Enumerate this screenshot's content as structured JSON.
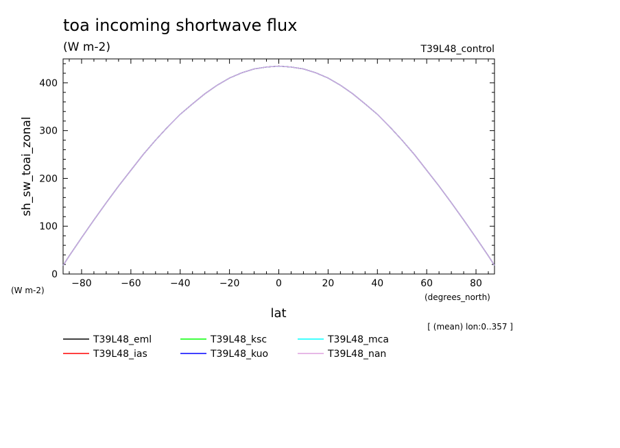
{
  "chart_data": {
    "type": "line",
    "title": "toa incoming shortwave flux",
    "subtitle": "(W m-2)",
    "run_label": "T39L48_control",
    "ylabel": "sh_sw_toai_zonal",
    "yunits": "(W m-2)",
    "xlabel": "lat",
    "xunits": "(degrees_north)",
    "footnote": "[ (mean) lon:0..357 ]",
    "xlim": [
      -87.5,
      87.5
    ],
    "ylim": [
      0,
      450
    ],
    "xticks": [
      -80,
      -60,
      -40,
      -20,
      0,
      20,
      40,
      60,
      80
    ],
    "yticks": [
      0,
      100,
      200,
      300,
      400
    ],
    "x": [
      -87.5,
      -85,
      -80,
      -75,
      -70,
      -65,
      -60,
      -55,
      -50,
      -45,
      -40,
      -35,
      -30,
      -25,
      -20,
      -15,
      -10,
      -5,
      0,
      5,
      10,
      15,
      20,
      25,
      30,
      35,
      40,
      45,
      50,
      55,
      60,
      65,
      70,
      75,
      80,
      85,
      87.5
    ],
    "series": [
      {
        "name": "T39L48_eml",
        "color": "#000000",
        "values": [
          18,
          38,
          76,
          113,
          149,
          184,
          217,
          250,
          280,
          308,
          334,
          356,
          377,
          395,
          410,
          421,
          429,
          433,
          435,
          433,
          429,
          421,
          410,
          395,
          377,
          356,
          334,
          308,
          280,
          250,
          217,
          184,
          149,
          113,
          76,
          38,
          18
        ]
      },
      {
        "name": "T39L48_ias",
        "color": "#ff0000",
        "values": [
          18,
          38,
          76,
          113,
          149,
          184,
          217,
          250,
          280,
          308,
          334,
          356,
          377,
          395,
          410,
          421,
          429,
          433,
          435,
          433,
          429,
          421,
          410,
          395,
          377,
          356,
          334,
          308,
          280,
          250,
          217,
          184,
          149,
          113,
          76,
          38,
          18
        ]
      },
      {
        "name": "T39L48_ksc",
        "color": "#00ff00",
        "values": [
          18,
          38,
          76,
          113,
          149,
          184,
          217,
          250,
          280,
          308,
          334,
          356,
          377,
          395,
          410,
          421,
          429,
          433,
          435,
          433,
          429,
          421,
          410,
          395,
          377,
          356,
          334,
          308,
          280,
          250,
          217,
          184,
          149,
          113,
          76,
          38,
          18
        ]
      },
      {
        "name": "T39L48_kuo",
        "color": "#0000ff",
        "values": [
          18,
          38,
          76,
          113,
          149,
          184,
          217,
          250,
          280,
          308,
          334,
          356,
          377,
          395,
          410,
          421,
          429,
          433,
          435,
          433,
          429,
          421,
          410,
          395,
          377,
          356,
          334,
          308,
          280,
          250,
          217,
          184,
          149,
          113,
          76,
          38,
          18
        ]
      },
      {
        "name": "T39L48_mca",
        "color": "#00ffff",
        "values": [
          18,
          38,
          76,
          113,
          149,
          184,
          217,
          250,
          280,
          308,
          334,
          356,
          377,
          395,
          410,
          421,
          429,
          433,
          435,
          433,
          429,
          421,
          410,
          395,
          377,
          356,
          334,
          308,
          280,
          250,
          217,
          184,
          149,
          113,
          76,
          38,
          18
        ]
      },
      {
        "name": "T39L48_nan",
        "color": "#dda0dd",
        "values": [
          18,
          38,
          76,
          113,
          149,
          184,
          217,
          250,
          280,
          308,
          334,
          356,
          377,
          395,
          410,
          421,
          429,
          433,
          435,
          433,
          429,
          421,
          410,
          395,
          377,
          356,
          334,
          308,
          280,
          250,
          217,
          184,
          149,
          113,
          76,
          38,
          18
        ]
      }
    ],
    "legend_order": [
      "T39L48_eml",
      "T39L48_ksc",
      "T39L48_mca",
      "T39L48_ias",
      "T39L48_kuo",
      "T39L48_nan"
    ]
  }
}
